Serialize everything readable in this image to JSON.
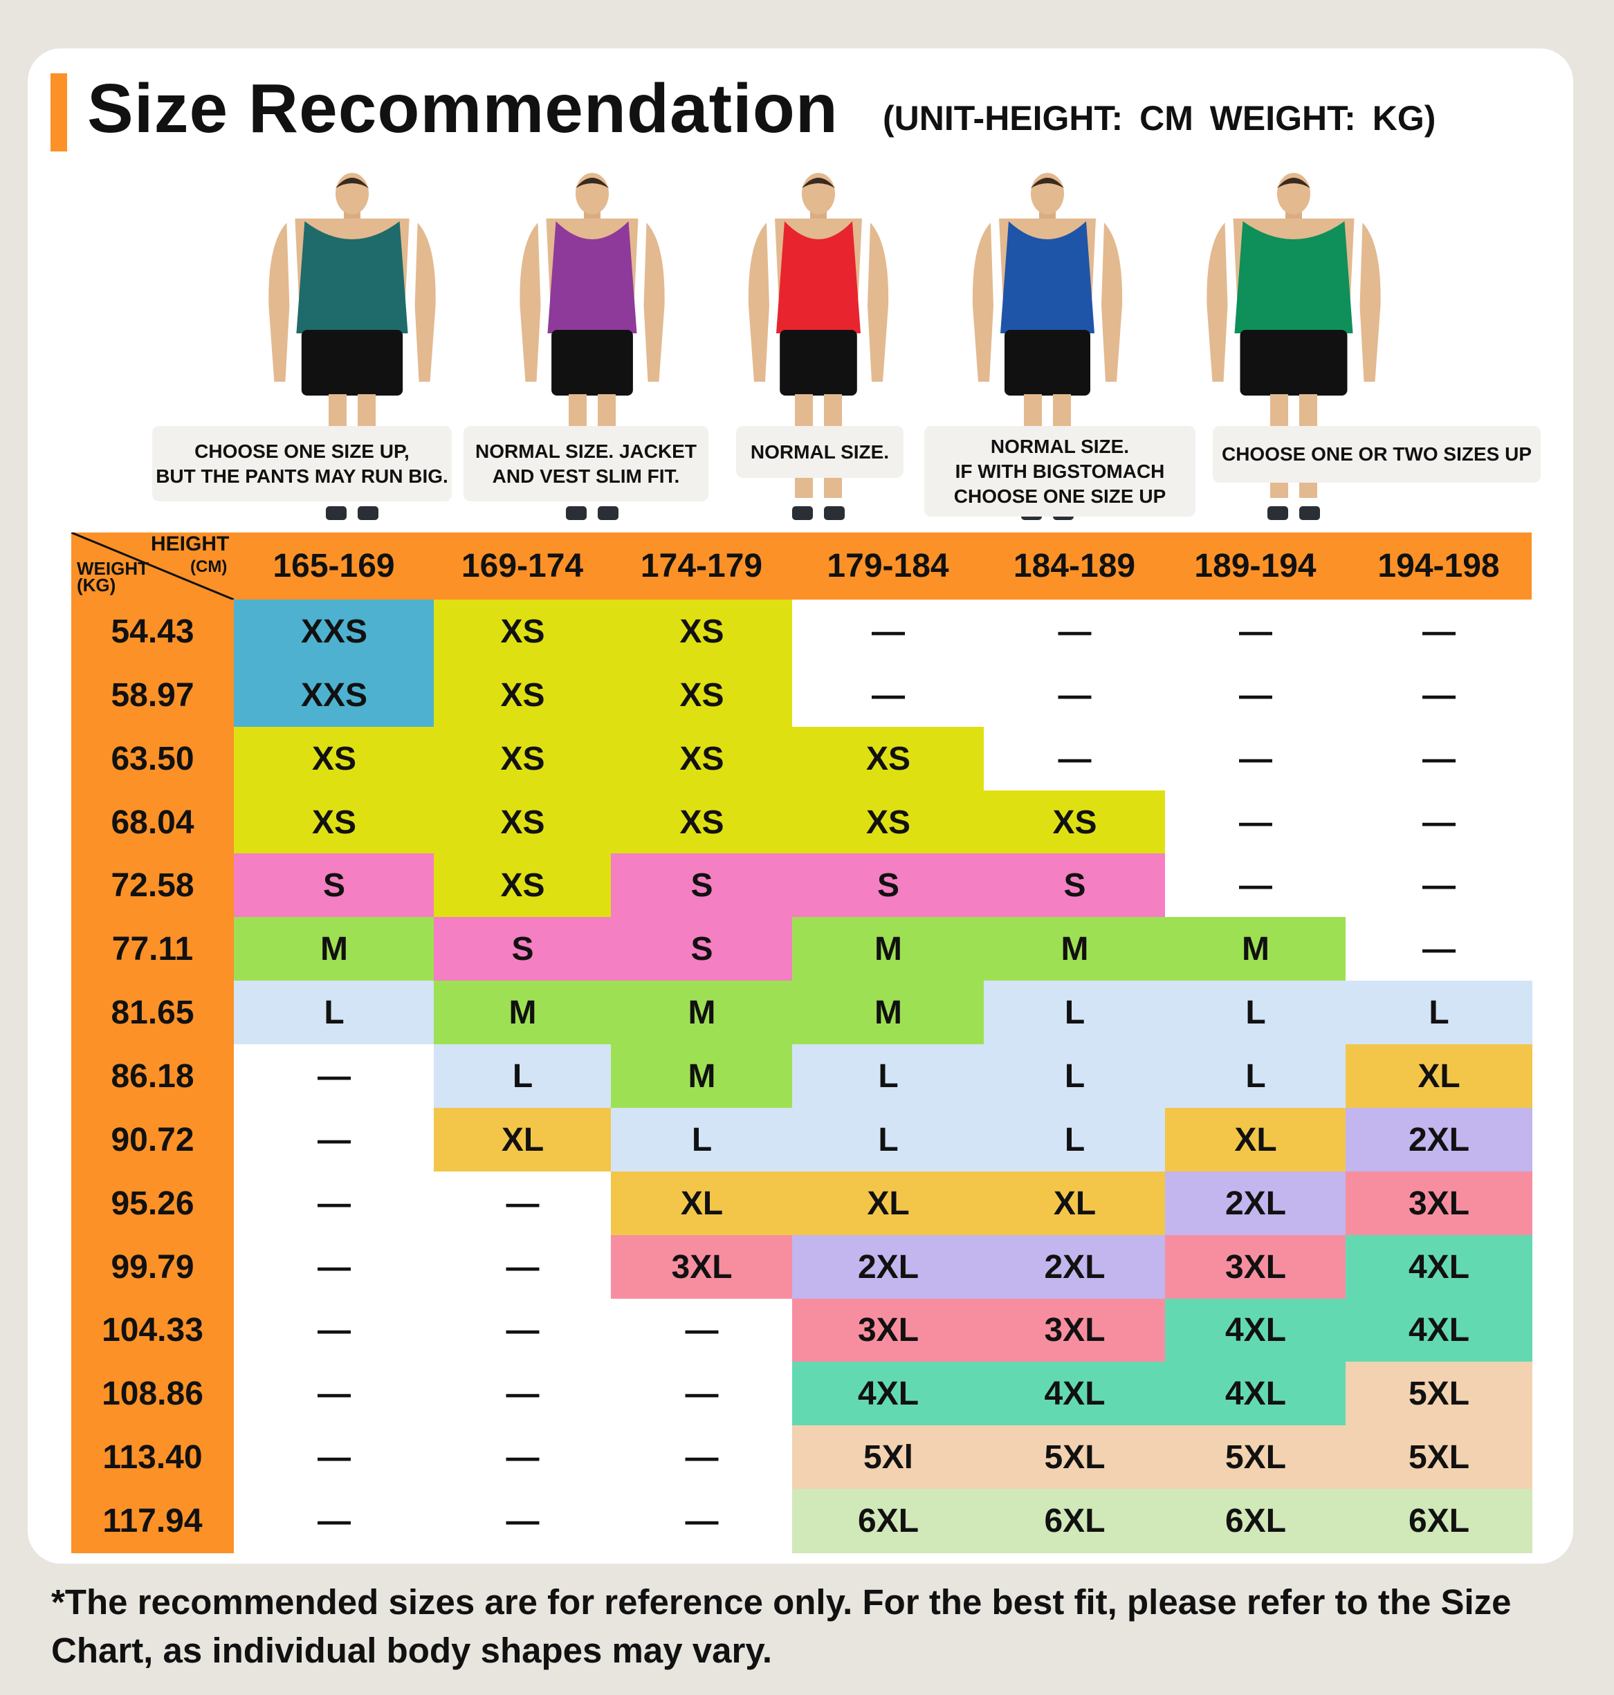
{
  "title": "Size Recommendation",
  "subtitle": "(UNIT-HEIGHT: CM  WEIGHT: KG)",
  "accent_color": "#fb9127",
  "figures": [
    {
      "shirt_color": "#1f6b6b",
      "note": "CHOOSE ONE SIZE UP,\nBUT THE PANTS MAY RUN BIG."
    },
    {
      "shirt_color": "#8e3a9a",
      "note": "NORMAL SIZE. JACKET\nAND VEST SLIM FIT."
    },
    {
      "shirt_color": "#e8242e",
      "note": "NORMAL SIZE."
    },
    {
      "shirt_color": "#1f55a8",
      "note": "NORMAL SIZE.\nIF WITH BIGSTOMACH\nCHOOSE ONE SIZE UP"
    },
    {
      "shirt_color": "#0f8f5a",
      "note": "CHOOSE ONE OR TWO SIZES UP"
    }
  ],
  "table": {
    "corner_height": "HEIGHT",
    "corner_cm": "(CM)",
    "corner_weight": "WEIGHT",
    "corner_kg": "(KG)",
    "heights": [
      "165-169",
      "169-174",
      "174-179",
      "179-184",
      "184-189",
      "189-194",
      "194-198"
    ],
    "rows": [
      {
        "weight": "54.43",
        "sizes": [
          "XXS",
          "XS",
          "XS",
          "—",
          "—",
          "—",
          "—"
        ]
      },
      {
        "weight": "58.97",
        "sizes": [
          "XXS",
          "XS",
          "XS",
          "—",
          "—",
          "—",
          "—"
        ]
      },
      {
        "weight": "63.50",
        "sizes": [
          "XS",
          "XS",
          "XS",
          "XS",
          "—",
          "—",
          "—"
        ]
      },
      {
        "weight": "68.04",
        "sizes": [
          "XS",
          "XS",
          "XS",
          "XS",
          "XS",
          "—",
          "—"
        ]
      },
      {
        "weight": "72.58",
        "sizes": [
          "S",
          "XS",
          "S",
          "S",
          "S",
          "—",
          "—"
        ]
      },
      {
        "weight": "77.11",
        "sizes": [
          "M",
          "S",
          "S",
          "M",
          "M",
          "M",
          "—"
        ]
      },
      {
        "weight": "81.65",
        "sizes": [
          "L",
          "M",
          "M",
          "M",
          "L",
          "L",
          "L"
        ]
      },
      {
        "weight": "86.18",
        "sizes": [
          "—",
          "L",
          "M",
          "L",
          "L",
          "L",
          "XL"
        ]
      },
      {
        "weight": "90.72",
        "sizes": [
          "—",
          "XL",
          "L",
          "L",
          "L",
          "XL",
          "2XL"
        ]
      },
      {
        "weight": "95.26",
        "sizes": [
          "—",
          "—",
          "XL",
          "XL",
          "XL",
          "2XL",
          "3XL"
        ]
      },
      {
        "weight": "99.79",
        "sizes": [
          "—",
          "—",
          "3XL",
          "2XL",
          "2XL",
          "3XL",
          "4XL"
        ]
      },
      {
        "weight": "104.33",
        "sizes": [
          "—",
          "—",
          "—",
          "3XL",
          "3XL",
          "4XL",
          "4XL"
        ]
      },
      {
        "weight": "108.86",
        "sizes": [
          "—",
          "—",
          "—",
          "4XL",
          "4XL",
          "4XL",
          "5XL"
        ]
      },
      {
        "weight": "113.40",
        "sizes": [
          "—",
          "—",
          "—",
          "5Xl",
          "5XL",
          "5XL",
          "5XL"
        ]
      },
      {
        "weight": "117.94",
        "sizes": [
          "—",
          "—",
          "—",
          "6XL",
          "6XL",
          "6XL",
          "6XL"
        ]
      }
    ],
    "size_colors": {
      "XXS": "#4db1cf",
      "XS": "#dfe012",
      "S": "#f47fc2",
      "M": "#9ee053",
      "L": "#d3e4f6",
      "XL": "#f3c64a",
      "2XL": "#c3b5ee",
      "3XL": "#f78ea0",
      "4XL": "#63d9b2",
      "5XL": "#f2d2b0",
      "5Xl": "#f2d2b0",
      "6XL": "#d1e8b9",
      "—": "#ffffff"
    }
  },
  "footer": "*The recommended sizes are for reference only. For the best fit, please refer to the Size Chart, as individual body shapes may vary."
}
